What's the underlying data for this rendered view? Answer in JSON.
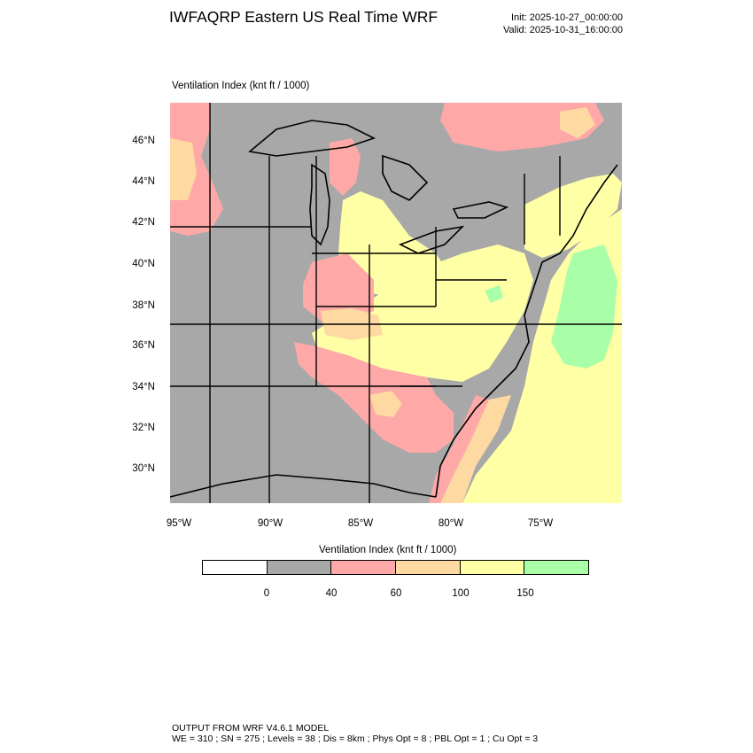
{
  "header": {
    "title": "IWFAQRP Eastern US Real Time WRF",
    "init": "Init: 2025-10-27_00:00:00",
    "valid": "Valid: 2025-10-31_16:00:00"
  },
  "field_title": "Ventilation Index   (knt ft / 1000)",
  "map": {
    "lat_labels": [
      "46°N",
      "44°N",
      "42°N",
      "40°N",
      "38°N",
      "36°N",
      "34°N",
      "32°N",
      "30°N"
    ],
    "lon_labels": [
      "95°W",
      "90°W",
      "85°W",
      "80°W",
      "75°W"
    ],
    "colors": {
      "below_0": "#ffffff",
      "0_40": "#a8a8a8",
      "40_60": "#ffa8a8",
      "60_100": "#ffd9a2",
      "100_150": "#ffffa6",
      "above_150": "#a8ffa8",
      "boundary": "#000000"
    }
  },
  "legend": {
    "title": "Ventilation Index  (knt ft / 1000)",
    "colors": [
      "#ffffff",
      "#a8a8a8",
      "#ffa8a8",
      "#ffd9a2",
      "#ffffa6",
      "#a8ffa8"
    ],
    "ticks": [
      "0",
      "40",
      "60",
      "100",
      "150"
    ]
  },
  "footer": {
    "line1": "OUTPUT FROM WRF V4.6.1 MODEL",
    "line2": "WE = 310 ; SN = 275 ; Levels = 38 ; Dis = 8km ; Phys Opt = 8 ; PBL Opt = 1 ; Cu Opt = 3"
  }
}
